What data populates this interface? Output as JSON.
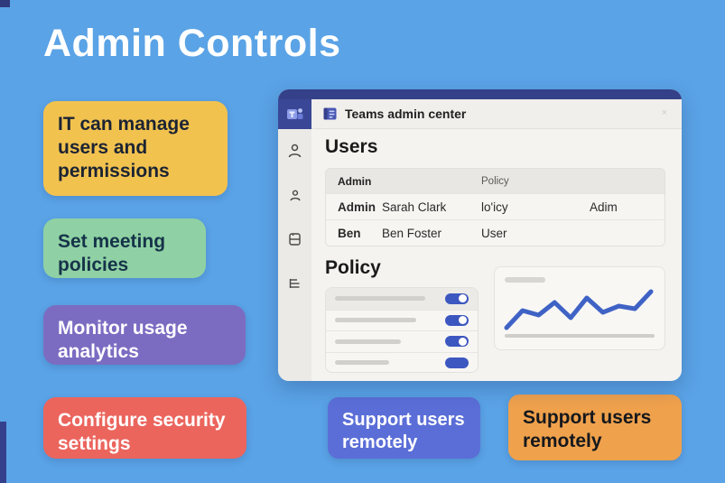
{
  "page": {
    "title": "Admin Controls",
    "background_color": "#5aa3e6",
    "accent_navy": "#344088"
  },
  "info_cards": [
    {
      "label": "IT can manage users and permissions",
      "bg": "#f2c24f",
      "fg": "#1c2433"
    },
    {
      "label": "Set meeting policies",
      "bg": "#8fd1a4",
      "fg": "#163349"
    },
    {
      "label": "Monitor usage analytics",
      "bg": "#7b6cc2",
      "fg": "#ffffff"
    },
    {
      "label": "Configure security settings",
      "bg": "#eb655d",
      "fg": "#ffffff"
    },
    {
      "label": "Support users remotely",
      "bg": "#5b6ed7",
      "fg": "#ffffff"
    },
    {
      "label": "Support users remotely",
      "bg": "#efa14c",
      "fg": "#15181c"
    }
  ],
  "window": {
    "app_title": "Teams admin center",
    "titlebar_color": "#344088",
    "logo_icon": "teams-logo-icon",
    "header_icon": "notebook-icon",
    "close_hint": "×",
    "sidebar_icons": [
      "user-icon",
      "user-small-icon",
      "notebook-icon",
      "list-lines-icon"
    ],
    "users_section": {
      "heading": "Users",
      "table": {
        "col_headers": [
          "Admin",
          "Policy"
        ],
        "rows": [
          {
            "name": "Admin",
            "full_name": "Sarah Clark",
            "policy": "lo'icy",
            "role": "Adim",
            "role_pill": false
          },
          {
            "name": "Ben",
            "full_name": "Ben Foster",
            "policy": "User",
            "role": "",
            "role_pill": true
          }
        ]
      }
    },
    "policy_section": {
      "heading": "Policy",
      "toggle_color": "#3d57c0",
      "line_widths": [
        100,
        90,
        73,
        60
      ],
      "toggles": [
        {
          "on": true,
          "knob": true
        },
        {
          "on": true,
          "knob": true
        },
        {
          "on": true,
          "knob": true
        },
        {
          "on": true,
          "knob": false
        }
      ]
    }
  },
  "chart_data": {
    "type": "line",
    "x": [
      0,
      1,
      2,
      3,
      4,
      5,
      6,
      7,
      8,
      9
    ],
    "values": [
      9,
      28,
      23,
      37,
      20,
      42,
      26,
      33,
      30,
      49
    ],
    "title": "",
    "xlabel": "",
    "ylabel": "",
    "ylim": [
      0,
      55
    ],
    "grid": false,
    "legend": "none",
    "line_color": "#3f62c5",
    "layout_hint": "unlabeled sparkline placeholder with title pill and baseline"
  }
}
